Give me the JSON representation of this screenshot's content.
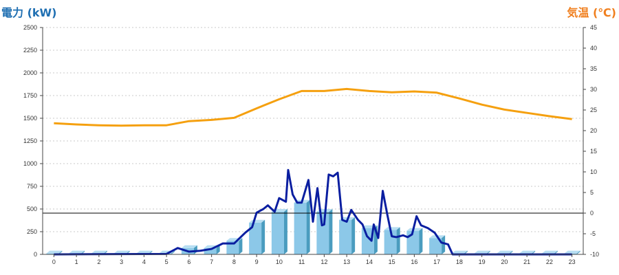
{
  "chart_data": {
    "type": "bar",
    "title": "",
    "left_axis_title": "電力 (kW)",
    "right_axis_title": "気温 (℃)",
    "xlabel": "",
    "categories": [
      "0",
      "1",
      "2",
      "3",
      "4",
      "5",
      "6",
      "7",
      "8",
      "9",
      "10",
      "11",
      "12",
      "13",
      "14",
      "15",
      "16",
      "17",
      "18",
      "19",
      "20",
      "21",
      "22",
      "23"
    ],
    "y_left": {
      "ylim": [
        0,
        2500
      ],
      "ticks": [
        "0",
        "250",
        "500",
        "750",
        "1000",
        "1250",
        "1500",
        "1750",
        "2000",
        "2250",
        "2500"
      ]
    },
    "y_right": {
      "ylim": [
        -10,
        45
      ],
      "ticks": [
        "-10",
        "-5",
        "0",
        "5",
        "10",
        "15",
        "20",
        "25",
        "30",
        "35",
        "40",
        "45"
      ]
    },
    "grid": true,
    "series": [
      {
        "kind": "bar",
        "axis": "left",
        "values": [
          10,
          10,
          10,
          10,
          10,
          10,
          70,
          70,
          150,
          350,
          470,
          570,
          470,
          380,
          290,
          270,
          260,
          180,
          10,
          10,
          10,
          10,
          10,
          10
        ]
      },
      {
        "kind": "line",
        "axis": "left",
        "x": [
          0,
          5,
          5.5,
          6,
          6.5,
          7,
          7.5,
          8,
          8.5,
          8.8,
          9,
          9.3,
          9.5,
          9.8,
          10,
          10.3,
          10.4,
          10.6,
          10.8,
          11,
          11.3,
          11.5,
          11.7,
          11.9,
          12,
          12.2,
          12.4,
          12.6,
          12.8,
          13,
          13.2,
          13.5,
          13.7,
          13.9,
          14.1,
          14.2,
          14.4,
          14.6,
          14.8,
          15,
          15.2,
          15.5,
          15.7,
          15.9,
          16.1,
          16.3,
          16.6,
          16.9,
          17.2,
          17.5,
          17.7,
          18,
          23
        ],
        "values": [
          0,
          5,
          70,
          30,
          40,
          60,
          120,
          120,
          240,
          300,
          460,
          500,
          540,
          470,
          620,
          580,
          930,
          660,
          570,
          570,
          820,
          360,
          730,
          320,
          330,
          880,
          860,
          900,
          380,
          360,
          490,
          380,
          330,
          200,
          150,
          330,
          180,
          700,
          440,
          200,
          190,
          210,
          190,
          220,
          420,
          320,
          290,
          240,
          130,
          110,
          0,
          0,
          0
        ]
      },
      {
        "kind": "line",
        "axis": "right",
        "values": [
          21.8,
          21.5,
          21.3,
          21.2,
          21.3,
          21.3,
          22.3,
          22.6,
          23.1,
          25.4,
          27.6,
          29.6,
          29.6,
          30.1,
          29.6,
          29.3,
          29.5,
          29.2,
          27.8,
          26.3,
          25.1,
          24.3,
          23.5,
          22.8
        ]
      }
    ],
    "colors": {
      "left_title": "#1f6fb2",
      "right_title": "#f07f1e",
      "bar_front": "#8cc8e8",
      "bar_side": "#4a9cbf",
      "bar_top": "#b7def2",
      "power_line": "#0a1ea0",
      "temp_line": "#f5a00f",
      "zero_line": "#000000",
      "axis": "#444444"
    }
  }
}
